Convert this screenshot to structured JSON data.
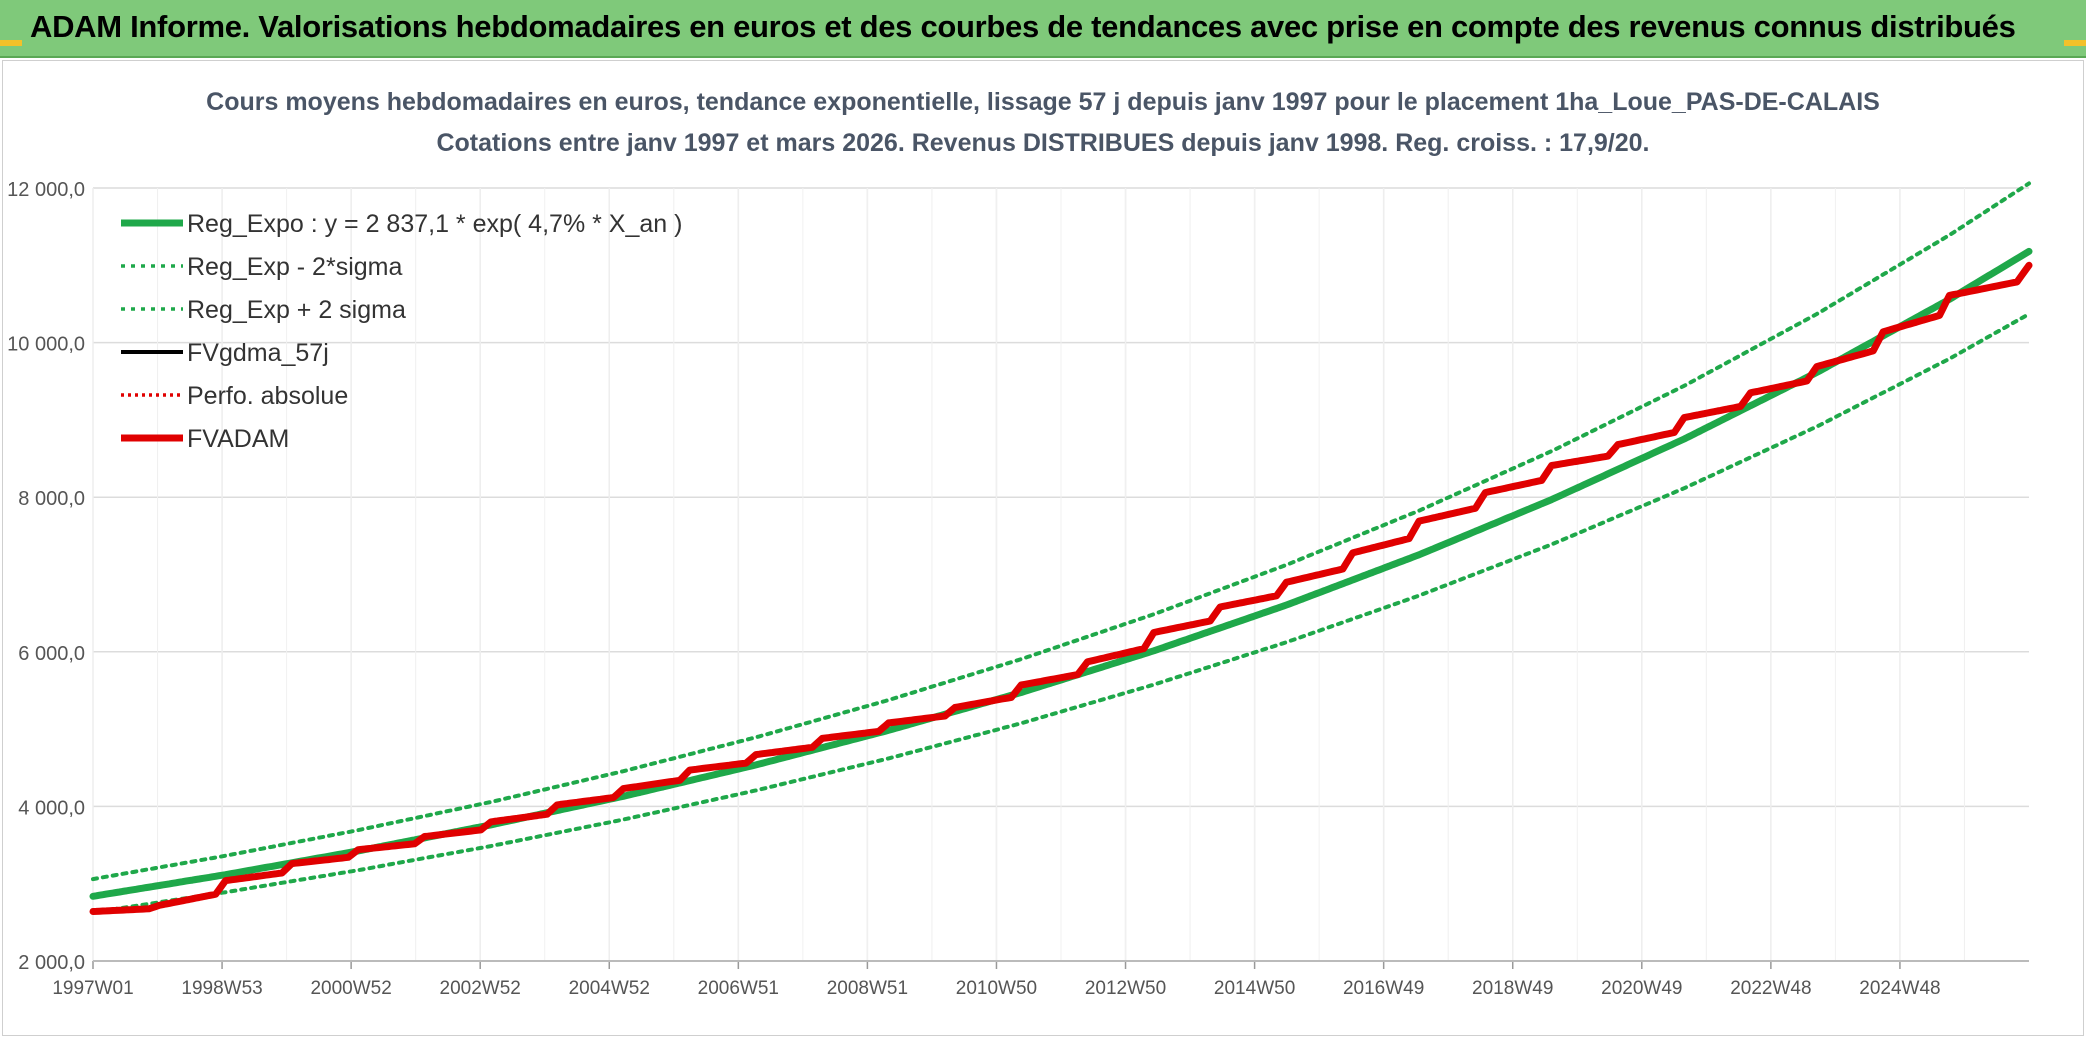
{
  "banner": {
    "title": "ADAM Informe. Valorisations hebdomadaires en euros et des courbes de tendances avec prise en compte des revenus connus distribués",
    "background": "#7fc97a"
  },
  "chart_data": {
    "type": "line",
    "title": "Cours moyens hebdomadaires en euros, tendance exponentielle, lissage 57 j depuis janv 1997 pour le placement 1ha_Loue_PAS-DE-CALAIS",
    "subtitle": "Cotations entre janv 1997 et mars 2026. Revenus DISTRIBUES depuis janv 1998. Reg. croiss. : 17,9/20.",
    "xlabel": "",
    "ylabel": "",
    "x_ticks": [
      "1997W01",
      "1998W53",
      "2000W52",
      "2002W52",
      "2004W52",
      "2006W51",
      "2008W51",
      "2010W50",
      "2012W50",
      "2014W50",
      "2016W49",
      "2018W49",
      "2020W49",
      "2022W48",
      "2024W48"
    ],
    "x_range": [
      1997.0,
      2026.2
    ],
    "ylim": [
      2000,
      12000
    ],
    "y_ticks": [
      "2 000,0",
      "4 000,0",
      "6 000,0",
      "8 000,0",
      "10 000,0",
      "12 000,0"
    ],
    "y_tick_values": [
      2000,
      4000,
      6000,
      8000,
      10000,
      12000
    ],
    "grid": true,
    "legend_position": "top-left",
    "series": [
      {
        "name": "Reg_Expo : y = 2 837,1 * exp( 4,7% *  X_an )",
        "color": "#1fa84a",
        "style": "solid",
        "x": [
          1997,
          1999,
          2001,
          2003,
          2005,
          2007,
          2009,
          2011,
          2013,
          2015,
          2017,
          2019,
          2021,
          2023,
          2025,
          2026.2
        ],
        "values": [
          2837,
          3117,
          3424,
          3761,
          4131,
          4537,
          4984,
          5474,
          6013,
          6605,
          7255,
          7969,
          8753,
          9614,
          10560,
          11180
        ]
      },
      {
        "name": "Reg_Exp - 2*sigma",
        "color": "#1fa84a",
        "style": "dotted",
        "x": [
          1997,
          1999,
          2001,
          2003,
          2005,
          2007,
          2009,
          2011,
          2013,
          2015,
          2017,
          2019,
          2021,
          2023,
          2025,
          2026.2
        ],
        "values": [
          2630,
          2890,
          3175,
          3487,
          3830,
          4207,
          4621,
          5076,
          5575,
          6124,
          6727,
          7389,
          8116,
          8914,
          9791,
          10370
        ]
      },
      {
        "name": "Reg_Exp + 2 sigma",
        "color": "#1fa84a",
        "style": "dotted",
        "x": [
          1997,
          1999,
          2001,
          2003,
          2005,
          2007,
          2009,
          2011,
          2013,
          2015,
          2017,
          2019,
          2021,
          2023,
          2025,
          2026.2
        ],
        "values": [
          3060,
          3362,
          3693,
          4057,
          4456,
          4894,
          5376,
          5905,
          6486,
          7124,
          7826,
          8596,
          9441,
          10370,
          11391,
          12060
        ]
      },
      {
        "name": "FVgdma_57j",
        "color": "#000000",
        "style": "solid",
        "x": [
          1997,
          1998,
          1999,
          2000,
          2001,
          2002,
          2003,
          2004,
          2005,
          2006,
          2007,
          2008,
          2009,
          2010,
          2011,
          2012,
          2013,
          2014,
          2015,
          2016,
          2017,
          2018,
          2019,
          2020,
          2021,
          2022,
          2023,
          2024,
          2025,
          2026.2
        ],
        "values": [
          2640,
          2720,
          3040,
          3260,
          3440,
          3610,
          3800,
          4020,
          4230,
          4470,
          4670,
          4880,
          5080,
          5280,
          5570,
          5870,
          6250,
          6580,
          6900,
          7280,
          7690,
          8060,
          8410,
          8680,
          9030,
          9350,
          9690,
          10140,
          10610,
          11000
        ]
      },
      {
        "name": "Perfo. absolue",
        "color": "#e00000",
        "style": "dotted",
        "x": [
          1997,
          1998,
          1999,
          2000,
          2001,
          2002,
          2003,
          2004,
          2005,
          2006,
          2007,
          2008,
          2009,
          2010,
          2011,
          2012,
          2013,
          2014,
          2015,
          2016,
          2017,
          2018,
          2019,
          2020,
          2021,
          2022,
          2023,
          2024,
          2025,
          2026.2
        ],
        "values": [
          2640,
          2720,
          3040,
          3260,
          3440,
          3610,
          3800,
          4020,
          4230,
          4470,
          4670,
          4880,
          5080,
          5280,
          5570,
          5870,
          6250,
          6580,
          6900,
          7280,
          7690,
          8060,
          8410,
          8680,
          9030,
          9350,
          9690,
          10140,
          10610,
          11000
        ]
      },
      {
        "name": "FVADAM",
        "color": "#e00000",
        "style": "solid",
        "x": [
          1997,
          1998,
          1999,
          2000,
          2001,
          2002,
          2003,
          2004,
          2005,
          2006,
          2007,
          2008,
          2009,
          2010,
          2011,
          2012,
          2013,
          2014,
          2015,
          2016,
          2017,
          2018,
          2019,
          2020,
          2021,
          2022,
          2023,
          2024,
          2025,
          2026.2
        ],
        "values": [
          2640,
          2720,
          3040,
          3260,
          3440,
          3610,
          3800,
          4020,
          4230,
          4470,
          4670,
          4880,
          5080,
          5280,
          5570,
          5870,
          6250,
          6580,
          6900,
          7280,
          7690,
          8060,
          8410,
          8680,
          9030,
          9350,
          9690,
          10140,
          10610,
          11000
        ]
      }
    ]
  }
}
